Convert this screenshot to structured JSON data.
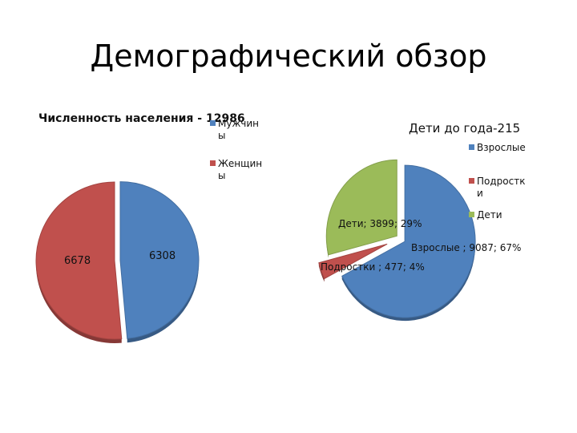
{
  "slide": {
    "title": "Демографический обзор"
  },
  "colors": {
    "blue": "#4f81bd",
    "red": "#c0504d",
    "green": "#9bbb59"
  },
  "chart_data": [
    {
      "type": "pie",
      "title": "Численность населения - 12986",
      "categories": [
        "Мужчин ы",
        "Женщин ы"
      ],
      "legend_lines": [
        [
          "Мужчин",
          "ы"
        ],
        [
          "Женщин",
          "ы"
        ]
      ],
      "values": [
        6308,
        6678
      ],
      "data_labels": [
        "6308",
        "6678"
      ],
      "colors": [
        "#4f81bd",
        "#c0504d"
      ],
      "exploded": true,
      "legend": "right"
    },
    {
      "type": "pie",
      "title": "Дети до года-215",
      "categories": [
        "Взрослые",
        "Подростки",
        "Дети"
      ],
      "legend_lines": [
        [
          "Взрослые"
        ],
        [
          "Подростк",
          "и"
        ],
        [
          "Дети"
        ]
      ],
      "values": [
        9087,
        477,
        3899
      ],
      "percent": [
        67,
        4,
        29
      ],
      "data_labels": [
        "Взрослые ; 9087; 67%",
        "Подростки ; 477; 4%",
        "Дети; 3899; 29%"
      ],
      "colors": [
        "#4f81bd",
        "#c0504d",
        "#9bbb59"
      ],
      "exploded": true,
      "legend": "right"
    }
  ]
}
